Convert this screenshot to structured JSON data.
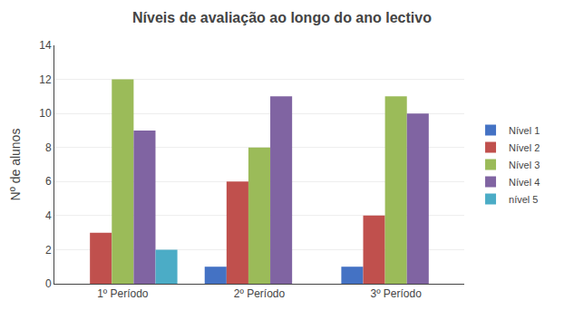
{
  "chart_data": {
    "type": "bar",
    "title": "Níveis de avaliação ao longo do ano lectivo",
    "ylabel": "Nº de alunos",
    "categories": [
      "1º Período",
      "2º Período",
      "3º Período"
    ],
    "series": [
      {
        "name": "Nível 1",
        "color": "#4472C4",
        "values": [
          0,
          1,
          1
        ]
      },
      {
        "name": "Nível 2",
        "color": "#C0504D",
        "values": [
          3,
          6,
          4
        ]
      },
      {
        "name": "Nível 3",
        "color": "#9BBB59",
        "values": [
          12,
          8,
          11
        ]
      },
      {
        "name": "Nível 4",
        "color": "#8064A2",
        "values": [
          9,
          11,
          10
        ]
      },
      {
        "name": "nível 5",
        "color": "#4BACC6",
        "values": [
          2,
          0,
          0
        ]
      }
    ],
    "ylim": [
      0,
      14
    ],
    "yticks": [
      0,
      2,
      4,
      6,
      8,
      10,
      12,
      14
    ],
    "grid": true,
    "legend": "right"
  }
}
